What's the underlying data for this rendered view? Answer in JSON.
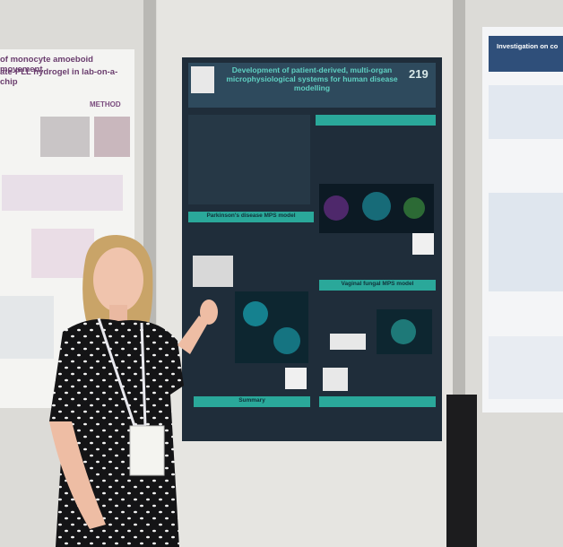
{
  "center_poster": {
    "title": "Development of patient-derived, multi-organ microphysiological systems for human disease modelling",
    "number": "219",
    "sections": [
      "Parkinson's disease MPS model",
      "Vaginal fungal MPS model",
      "Summary"
    ]
  },
  "left_poster": {
    "title_line1": "of monocyte amoeboid movement",
    "title_line2": "ate-PLL hydrogel in lab-on-a-chip",
    "section": "METHOD"
  },
  "right_poster": {
    "title": "Investigation on co"
  }
}
